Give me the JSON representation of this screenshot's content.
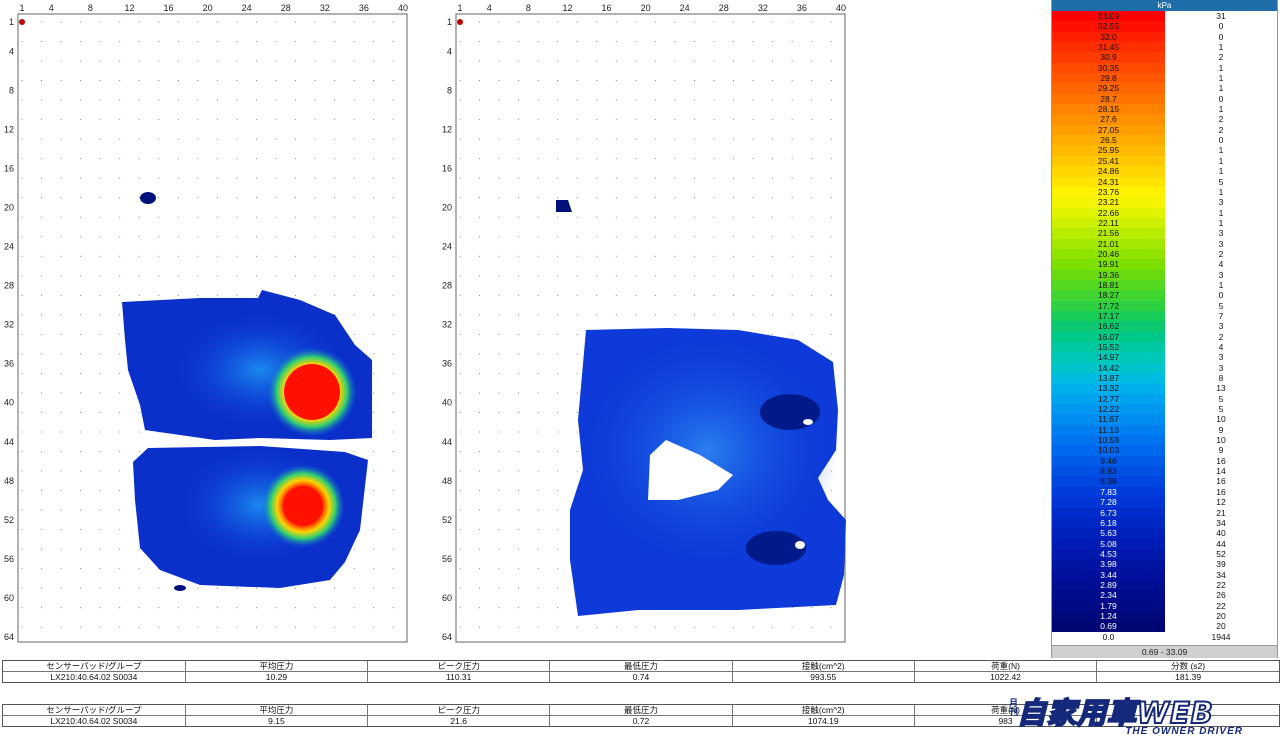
{
  "maps": [
    {
      "x_ticks": [
        "1",
        "4",
        "8",
        "12",
        "16",
        "20",
        "24",
        "28",
        "32",
        "36",
        "40"
      ],
      "y_ticks": [
        "1",
        "4",
        "8",
        "12",
        "16",
        "20",
        "24",
        "28",
        "32",
        "36",
        "40",
        "44",
        "48",
        "52",
        "56",
        "60",
        "64"
      ]
    },
    {
      "x_ticks": [
        "1",
        "4",
        "8",
        "12",
        "16",
        "20",
        "24",
        "28",
        "32",
        "36",
        "40"
      ],
      "y_ticks": [
        "1",
        "4",
        "8",
        "12",
        "16",
        "20",
        "24",
        "28",
        "32",
        "36",
        "40",
        "44",
        "48",
        "52",
        "56",
        "60",
        "64"
      ]
    }
  ],
  "colors": {
    "high": "#ff1a00",
    "mid": "#ffd400",
    "low": "#0b34d6",
    "base": "#001a9e",
    "grid_dot": "#777777"
  },
  "scale": {
    "unit": "kPa",
    "rows": [
      {
        "v": "33.09",
        "c": "31",
        "col": "#ff0000"
      },
      {
        "v": "32.55",
        "c": "0",
        "col": "#ff1000"
      },
      {
        "v": "32.0",
        "c": "0",
        "col": "#ff2000"
      },
      {
        "v": "31.45",
        "c": "1",
        "col": "#ff2e00"
      },
      {
        "v": "30.9",
        "c": "2",
        "col": "#ff3c00"
      },
      {
        "v": "30.35",
        "c": "1",
        "col": "#ff4a00"
      },
      {
        "v": "29.8",
        "c": "1",
        "col": "#ff5800"
      },
      {
        "v": "29.25",
        "c": "1",
        "col": "#ff6600"
      },
      {
        "v": "28.7",
        "c": "0",
        "col": "#ff7400"
      },
      {
        "v": "28.15",
        "c": "1",
        "col": "#ff8200"
      },
      {
        "v": "27.6",
        "c": "2",
        "col": "#ff9000"
      },
      {
        "v": "27.05",
        "c": "2",
        "col": "#ff9e00"
      },
      {
        "v": "26.5",
        "c": "0",
        "col": "#ffac00"
      },
      {
        "v": "25.95",
        "c": "1",
        "col": "#ffba00"
      },
      {
        "v": "25.41",
        "c": "1",
        "col": "#ffc800"
      },
      {
        "v": "24.86",
        "c": "1",
        "col": "#ffd600"
      },
      {
        "v": "24.31",
        "c": "5",
        "col": "#ffe400"
      },
      {
        "v": "23.76",
        "c": "1",
        "col": "#fff200"
      },
      {
        "v": "23.21",
        "c": "3",
        "col": "#f4f400"
      },
      {
        "v": "22.66",
        "c": "1",
        "col": "#e0f400"
      },
      {
        "v": "22.11",
        "c": "1",
        "col": "#ccf000"
      },
      {
        "v": "21.56",
        "c": "3",
        "col": "#b8ec00"
      },
      {
        "v": "21.01",
        "c": "3",
        "col": "#a4e800"
      },
      {
        "v": "20.46",
        "c": "2",
        "col": "#90e400"
      },
      {
        "v": "19.91",
        "c": "4",
        "col": "#7ce000"
      },
      {
        "v": "19.36",
        "c": "3",
        "col": "#68dc10"
      },
      {
        "v": "18.81",
        "c": "1",
        "col": "#54d820"
      },
      {
        "v": "18.27",
        "c": "0",
        "col": "#40d430"
      },
      {
        "v": "17.72",
        "c": "5",
        "col": "#2cd040"
      },
      {
        "v": "17.17",
        "c": "7",
        "col": "#18cc58"
      },
      {
        "v": "16.62",
        "c": "3",
        "col": "#0cc870"
      },
      {
        "v": "16.07",
        "c": "2",
        "col": "#00c888"
      },
      {
        "v": "15.52",
        "c": "4",
        "col": "#00c8a0"
      },
      {
        "v": "14.97",
        "c": "3",
        "col": "#00c8b8"
      },
      {
        "v": "14.42",
        "c": "3",
        "col": "#00c4cc"
      },
      {
        "v": "13.87",
        "c": "8",
        "col": "#00bce0"
      },
      {
        "v": "13.32",
        "c": "13",
        "col": "#00b0ec"
      },
      {
        "v": "12.77",
        "c": "5",
        "col": "#00a4f0"
      },
      {
        "v": "12.22",
        "c": "5",
        "col": "#0098f0"
      },
      {
        "v": "11.67",
        "c": "10",
        "col": "#008cf0"
      },
      {
        "v": "11.13",
        "c": "9",
        "col": "#0080f0"
      },
      {
        "v": "10.58",
        "c": "10",
        "col": "#0074f0"
      },
      {
        "v": "10.03",
        "c": "9",
        "col": "#0068ec"
      },
      {
        "v": "9.48",
        "c": "16",
        "col": "#005ce8"
      },
      {
        "v": "8.93",
        "c": "14",
        "col": "#0050e4"
      },
      {
        "v": "8.38",
        "c": "16",
        "col": "#0046e0"
      },
      {
        "v": "7.83",
        "c": "16",
        "col": "#003cdc"
      },
      {
        "v": "7.28",
        "c": "12",
        "col": "#0034d4"
      },
      {
        "v": "6.73",
        "c": "21",
        "col": "#002ccc"
      },
      {
        "v": "6.18",
        "c": "34",
        "col": "#0026c4"
      },
      {
        "v": "5.63",
        "c": "40",
        "col": "#0020bc"
      },
      {
        "v": "5.08",
        "c": "44",
        "col": "#001cb4"
      },
      {
        "v": "4.53",
        "c": "52",
        "col": "#0018ac"
      },
      {
        "v": "3.98",
        "c": "39",
        "col": "#0014a4"
      },
      {
        "v": "3.44",
        "c": "34",
        "col": "#00109c"
      },
      {
        "v": "2.89",
        "c": "22",
        "col": "#000e94"
      },
      {
        "v": "2.34",
        "c": "26",
        "col": "#000c8c"
      },
      {
        "v": "1.79",
        "c": "22",
        "col": "#000a84"
      },
      {
        "v": "1.24",
        "c": "20",
        "col": "#00087c"
      },
      {
        "v": "0.69",
        "c": "20",
        "col": "#000674"
      },
      {
        "v": "0.0",
        "c": "1944",
        "col": "#ffffff"
      }
    ],
    "range": "0.69 - 33.09"
  },
  "table1": {
    "headers": [
      "センサーパッド/グループ",
      "平均圧力",
      "ピーク圧力",
      "最低圧力",
      "接触(cm^2)",
      "荷重(N)",
      "分数 (s2)"
    ],
    "values": [
      "LX210:40.64.02 S0034",
      "10.29",
      "110.31",
      "0.74",
      "993.55",
      "1022.42",
      "181.39"
    ]
  },
  "table2": {
    "headers": [
      "センサーパッド/グループ",
      "平均圧力",
      "ピーク圧力",
      "最低圧力",
      "接触(cm^2)",
      "荷重(N)",
      ""
    ],
    "values": [
      "LX210:40.64.02 S0034",
      "9.15",
      "21.6",
      "0.72",
      "1074.19",
      "983",
      ""
    ]
  },
  "logo": {
    "main": "自家用車WEB",
    "sub": "THE OWNER DRIVER",
    "side": "月刊"
  }
}
